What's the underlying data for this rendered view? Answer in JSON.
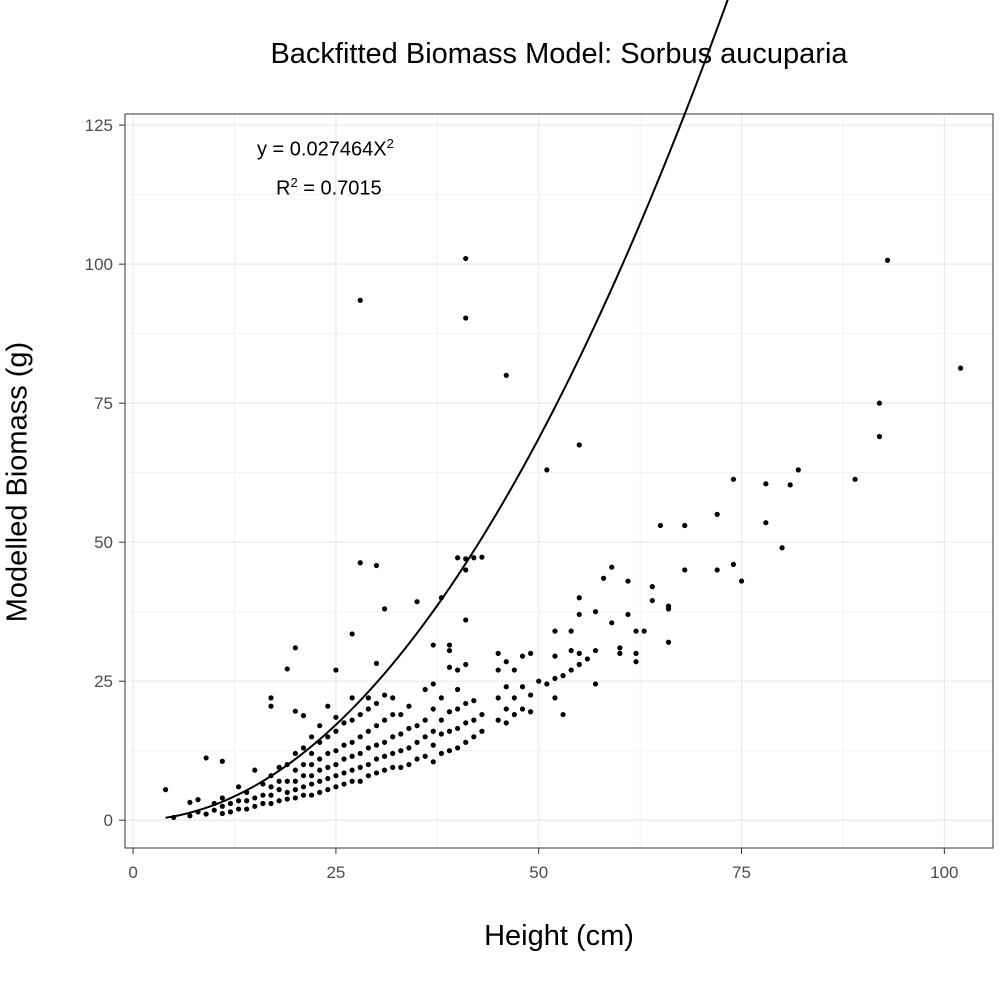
{
  "chart_data": {
    "type": "scatter",
    "title": "Backfitted Biomass Model: Sorbus aucuparia",
    "xlabel": "Height (cm)",
    "ylabel": "Modelled Biomass (g)",
    "xlim": [
      -1,
      106
    ],
    "ylim": [
      -5,
      127
    ],
    "x_ticks": [
      0,
      25,
      50,
      75,
      100
    ],
    "y_ticks": [
      0,
      25,
      50,
      75,
      100,
      125
    ],
    "grid": true,
    "annotations": {
      "equation_prefix": "y = 0.027464X",
      "equation_exponent": "2",
      "r2_prefix": "R",
      "r2_exponent": "2",
      "r2_suffix": " = 0.7015"
    },
    "fit": {
      "type": "power",
      "coefficient": 0.027464,
      "exponent": 2,
      "x_range": [
        4,
        102
      ]
    },
    "points": [
      [
        4,
        5.5
      ],
      [
        5,
        0.5
      ],
      [
        7,
        0.8
      ],
      [
        7,
        3.2
      ],
      [
        8,
        1.5
      ],
      [
        8,
        3.7
      ],
      [
        9,
        1.1
      ],
      [
        9,
        11.2
      ],
      [
        10,
        1.8
      ],
      [
        10,
        3.0
      ],
      [
        11,
        1.2
      ],
      [
        11,
        2.5
      ],
      [
        11,
        4.0
      ],
      [
        11,
        10.6
      ],
      [
        12,
        1.5
      ],
      [
        12,
        3.0
      ],
      [
        13,
        2.0
      ],
      [
        13,
        3.5
      ],
      [
        13,
        6.0
      ],
      [
        14,
        2.0
      ],
      [
        14,
        3.5
      ],
      [
        14,
        5.0
      ],
      [
        15,
        2.5
      ],
      [
        15,
        4.0
      ],
      [
        15,
        9.0
      ],
      [
        16,
        3.0
      ],
      [
        16,
        4.5
      ],
      [
        16,
        6.5
      ],
      [
        17,
        3.0
      ],
      [
        17,
        4.5
      ],
      [
        17,
        6.0
      ],
      [
        17,
        8.0
      ],
      [
        17,
        22.0
      ],
      [
        17,
        20.5
      ],
      [
        18,
        3.5
      ],
      [
        18,
        5.5
      ],
      [
        18,
        7.0
      ],
      [
        18,
        9.5
      ],
      [
        19,
        3.8
      ],
      [
        19,
        5.0
      ],
      [
        19,
        7.0
      ],
      [
        19,
        10.0
      ],
      [
        19,
        27.2
      ],
      [
        20,
        4.0
      ],
      [
        20,
        5.5
      ],
      [
        20,
        7.0
      ],
      [
        20,
        9.0
      ],
      [
        20,
        12.0
      ],
      [
        20,
        19.6
      ],
      [
        20,
        31.0
      ],
      [
        21,
        4.5
      ],
      [
        21,
        6.0
      ],
      [
        21,
        8.0
      ],
      [
        21,
        10.0
      ],
      [
        21,
        13.0
      ],
      [
        21,
        18.8
      ],
      [
        22,
        4.5
      ],
      [
        22,
        6.5
      ],
      [
        22,
        8.0
      ],
      [
        22,
        10.0
      ],
      [
        22,
        12.0
      ],
      [
        22,
        15.0
      ],
      [
        23,
        5.0
      ],
      [
        23,
        7.0
      ],
      [
        23,
        9.0
      ],
      [
        23,
        11.0
      ],
      [
        23,
        14.0
      ],
      [
        23,
        17.0
      ],
      [
        24,
        5.5
      ],
      [
        24,
        7.5
      ],
      [
        24,
        9.5
      ],
      [
        24,
        12.0
      ],
      [
        24,
        15.0
      ],
      [
        24,
        20.5
      ],
      [
        25,
        6.0
      ],
      [
        25,
        8.0
      ],
      [
        25,
        10.0
      ],
      [
        25,
        12.5
      ],
      [
        25,
        16.0
      ],
      [
        25,
        18.5
      ],
      [
        25,
        27.0
      ],
      [
        26,
        6.5
      ],
      [
        26,
        8.5
      ],
      [
        26,
        11.0
      ],
      [
        26,
        13.5
      ],
      [
        26,
        17.5
      ],
      [
        27,
        7.0
      ],
      [
        27,
        9.0
      ],
      [
        27,
        11.5
      ],
      [
        27,
        14.0
      ],
      [
        27,
        18.0
      ],
      [
        27,
        22.0
      ],
      [
        27,
        33.5
      ],
      [
        28,
        7.0
      ],
      [
        28,
        9.5
      ],
      [
        28,
        12.0
      ],
      [
        28,
        15.0
      ],
      [
        28,
        19.0
      ],
      [
        28,
        46.3
      ],
      [
        28,
        93.5
      ],
      [
        29,
        8.0
      ],
      [
        29,
        10.0
      ],
      [
        29,
        13.0
      ],
      [
        29,
        16.0
      ],
      [
        29,
        20.0
      ],
      [
        29,
        22.0
      ],
      [
        30,
        8.5
      ],
      [
        30,
        11.0
      ],
      [
        30,
        13.5
      ],
      [
        30,
        17.0
      ],
      [
        30,
        21.0
      ],
      [
        30,
        28.2
      ],
      [
        30,
        45.8
      ],
      [
        31,
        9.0
      ],
      [
        31,
        11.5
      ],
      [
        31,
        14.0
      ],
      [
        31,
        18.0
      ],
      [
        31,
        22.5
      ],
      [
        31,
        38.0
      ],
      [
        32,
        9.5
      ],
      [
        32,
        12.0
      ],
      [
        32,
        15.0
      ],
      [
        32,
        19.0
      ],
      [
        32,
        22.0
      ],
      [
        33,
        9.5
      ],
      [
        33,
        12.5
      ],
      [
        33,
        15.5
      ],
      [
        33,
        19.0
      ],
      [
        34,
        10.0
      ],
      [
        34,
        13.0
      ],
      [
        34,
        16.5
      ],
      [
        34,
        20.5
      ],
      [
        35,
        11.0
      ],
      [
        35,
        14.0
      ],
      [
        35,
        17.0
      ],
      [
        35,
        39.3
      ],
      [
        36,
        11.5
      ],
      [
        36,
        15.0
      ],
      [
        36,
        18.0
      ],
      [
        36,
        23.5
      ],
      [
        37,
        10.5
      ],
      [
        37,
        13.5
      ],
      [
        37,
        16.0
      ],
      [
        37,
        20.0
      ],
      [
        37,
        24.5
      ],
      [
        37,
        31.5
      ],
      [
        38,
        12.0
      ],
      [
        38,
        15.5
      ],
      [
        38,
        18.0
      ],
      [
        38,
        22.0
      ],
      [
        38,
        40.0
      ],
      [
        39,
        12.5
      ],
      [
        39,
        16.0
      ],
      [
        39,
        19.5
      ],
      [
        39,
        27.5
      ],
      [
        39,
        30.5
      ],
      [
        39,
        31.5
      ],
      [
        40,
        13.0
      ],
      [
        40,
        16.5
      ],
      [
        40,
        20.0
      ],
      [
        40,
        23.5
      ],
      [
        40,
        27.0
      ],
      [
        40,
        47.2
      ],
      [
        41,
        14.0
      ],
      [
        41,
        17.5
      ],
      [
        41,
        21.0
      ],
      [
        41,
        28.0
      ],
      [
        41,
        36.0
      ],
      [
        41,
        45.0
      ],
      [
        41,
        47.0
      ],
      [
        41,
        90.3
      ],
      [
        41,
        101.0
      ],
      [
        42,
        15.0
      ],
      [
        42,
        18.0
      ],
      [
        42,
        21.5
      ],
      [
        42,
        47.2
      ],
      [
        43,
        16.0
      ],
      [
        43,
        19.0
      ],
      [
        43,
        47.3
      ],
      [
        45,
        18.0
      ],
      [
        45,
        22.0
      ],
      [
        45,
        27.0
      ],
      [
        45,
        30.0
      ],
      [
        46,
        17.5
      ],
      [
        46,
        20.0
      ],
      [
        46,
        24.0
      ],
      [
        46,
        28.5
      ],
      [
        46,
        80.0
      ],
      [
        47,
        19.0
      ],
      [
        47,
        22.0
      ],
      [
        47,
        27.0
      ],
      [
        48,
        20.0
      ],
      [
        48,
        24.0
      ],
      [
        48,
        29.5
      ],
      [
        49,
        19.5
      ],
      [
        49,
        22.5
      ],
      [
        49,
        30.0
      ],
      [
        50,
        25.0
      ],
      [
        51,
        24.5
      ],
      [
        51,
        63.0
      ],
      [
        52,
        22.0
      ],
      [
        52,
        25.5
      ],
      [
        52,
        29.5
      ],
      [
        52,
        34.0
      ],
      [
        53,
        19.0
      ],
      [
        53,
        26.0
      ],
      [
        54,
        27.0
      ],
      [
        54,
        30.5
      ],
      [
        54,
        34.0
      ],
      [
        55,
        28.0
      ],
      [
        55,
        30.0
      ],
      [
        55,
        37.0
      ],
      [
        55,
        40.0
      ],
      [
        55,
        67.5
      ],
      [
        56,
        29.0
      ],
      [
        57,
        24.5
      ],
      [
        57,
        30.5
      ],
      [
        57,
        37.5
      ],
      [
        58,
        43.5
      ],
      [
        59,
        35.5
      ],
      [
        59,
        45.5
      ],
      [
        60,
        30.0
      ],
      [
        60,
        31.0
      ],
      [
        61,
        37.0
      ],
      [
        61,
        43.0
      ],
      [
        62,
        28.5
      ],
      [
        62,
        30.0
      ],
      [
        62,
        34.0
      ],
      [
        63,
        34.0
      ],
      [
        64,
        39.5
      ],
      [
        64,
        42.0
      ],
      [
        65,
        53.0
      ],
      [
        66,
        32.0
      ],
      [
        66,
        38.0
      ],
      [
        66,
        38.5
      ],
      [
        68,
        45.0
      ],
      [
        68,
        53.0
      ],
      [
        72,
        45.0
      ],
      [
        72,
        55.0
      ],
      [
        74,
        46.0
      ],
      [
        74,
        61.3
      ],
      [
        75,
        43.0
      ],
      [
        78,
        53.5
      ],
      [
        78,
        60.5
      ],
      [
        80,
        49.0
      ],
      [
        81,
        60.3
      ],
      [
        82,
        63.0
      ],
      [
        89,
        61.3
      ],
      [
        92,
        69.0
      ],
      [
        92,
        75.0
      ],
      [
        93,
        100.7
      ],
      [
        102,
        81.3
      ]
    ]
  }
}
